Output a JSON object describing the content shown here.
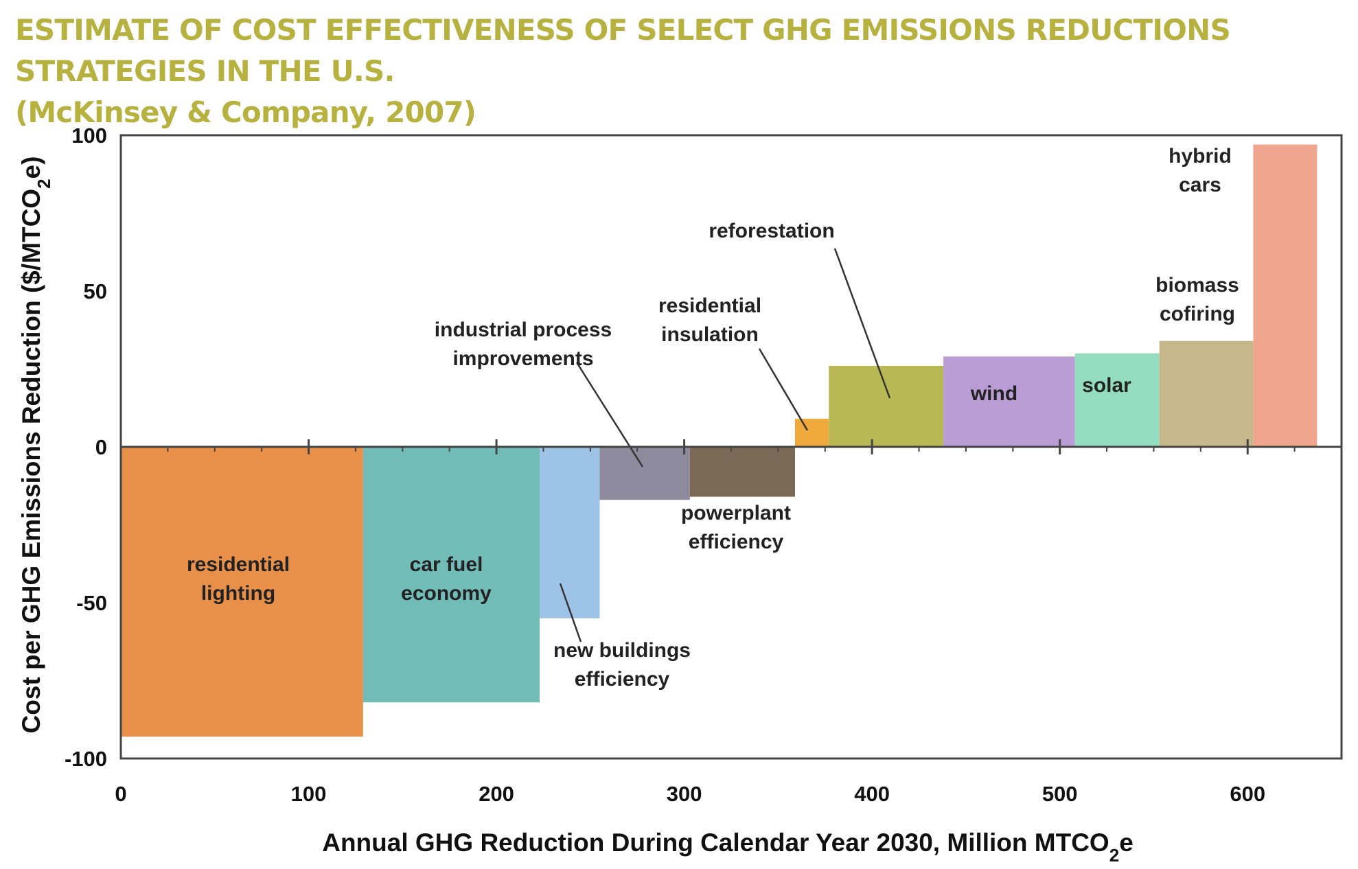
{
  "title": {
    "line1": "ESTIMATE OF COST EFFECTIVENESS OF SELECT GHG EMISSIONS REDUCTIONS STRATEGIES IN THE U.S.",
    "line2": "(McKinsey & Company, 2007)"
  },
  "chart_data": {
    "type": "bar",
    "subtype": "marginal-abatement-cost-curve",
    "xlabel": "Annual GHG Reduction During Calendar Year 2030, Million MTCO2e",
    "ylabel": "Cost per GHG Emissions Reduction ($/MTCO2e)",
    "xlim": [
      0,
      650
    ],
    "ylim": [
      -100,
      100
    ],
    "x_ticks": [
      0,
      100,
      200,
      300,
      400,
      500,
      600
    ],
    "y_ticks": [
      100,
      50,
      0,
      -50,
      -100
    ],
    "grid": false,
    "legend": "none",
    "segments": [
      {
        "name": "residential lighting",
        "x_start": 0,
        "x_end": 129,
        "cost": -93,
        "color": "#e8904a"
      },
      {
        "name": "car fuel economy",
        "x_start": 129,
        "x_end": 223,
        "cost": -82,
        "color": "#72bcb8"
      },
      {
        "name": "new buildings efficiency",
        "x_start": 223,
        "x_end": 255,
        "cost": -55,
        "color": "#9dc4e6"
      },
      {
        "name": "industrial process improvements",
        "x_start": 255,
        "x_end": 303,
        "cost": -17,
        "color": "#8e8b9e"
      },
      {
        "name": "powerplant efficiency",
        "x_start": 303,
        "x_end": 359,
        "cost": -16,
        "color": "#7a6955"
      },
      {
        "name": "residential insulation",
        "x_start": 359,
        "x_end": 377,
        "cost": 9,
        "color": "#f0a93c"
      },
      {
        "name": "reforestation",
        "x_start": 377,
        "x_end": 438,
        "cost": 26,
        "color": "#b8b954"
      },
      {
        "name": "wind",
        "x_start": 438,
        "x_end": 508,
        "cost": 29,
        "color": "#bb9dd6"
      },
      {
        "name": "solar",
        "x_start": 508,
        "x_end": 553,
        "cost": 30,
        "color": "#93dcc0"
      },
      {
        "name": "biomass cofiring",
        "x_start": 553,
        "x_end": 603,
        "cost": 34,
        "color": "#c7b88c"
      },
      {
        "name": "hybrid cars",
        "x_start": 603,
        "x_end": 637,
        "cost": 97,
        "color": "#f0a58e"
      }
    ],
    "annotations": [
      {
        "lines": [
          "residential",
          "lighting"
        ]
      },
      {
        "lines": [
          "car fuel",
          "economy"
        ]
      },
      {
        "lines": [
          "new buildings",
          "efficiency"
        ]
      },
      {
        "lines": [
          "industrial process",
          "improvements"
        ]
      },
      {
        "lines": [
          "powerplant",
          "efficiency"
        ]
      },
      {
        "lines": [
          "residential",
          "insulation"
        ]
      },
      {
        "lines": [
          "reforestation"
        ]
      },
      {
        "lines": [
          "wind"
        ]
      },
      {
        "lines": [
          "solar"
        ]
      },
      {
        "lines": [
          "biomass",
          "cofiring"
        ]
      },
      {
        "lines": [
          "hybrid",
          "cars"
        ]
      }
    ]
  }
}
